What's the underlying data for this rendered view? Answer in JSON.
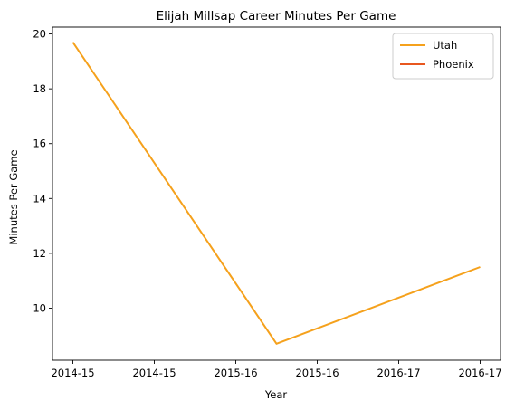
{
  "chart_data": {
    "type": "line",
    "title": "Elijah Millsap Career Minutes Per Game",
    "xlabel": "Year",
    "ylabel": "Minutes Per Game",
    "x_tick_labels": [
      "2014-15",
      "2014-15",
      "2015-16",
      "2015-16",
      "2016-17",
      "2016-17"
    ],
    "ylim": [
      8.1,
      20.25
    ],
    "y_ticks": [
      10,
      12,
      14,
      16,
      18,
      20
    ],
    "grid": false,
    "legend_position": "top-right",
    "series": [
      {
        "name": "Utah",
        "color": "#f5a11c",
        "points": [
          {
            "x": 0,
            "y": 19.7
          },
          {
            "x": 2.5,
            "y": 8.7
          },
          {
            "x": 5,
            "y": 11.5
          }
        ]
      },
      {
        "name": "Phoenix",
        "color": "#e8571f",
        "points": []
      }
    ]
  }
}
